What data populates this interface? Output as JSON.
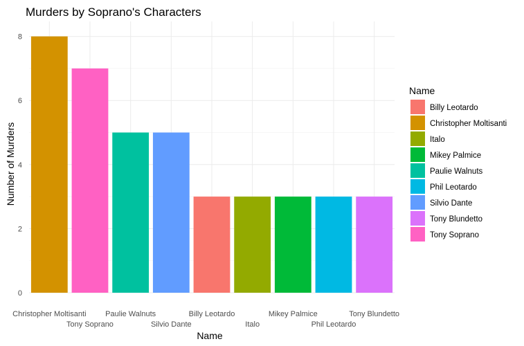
{
  "chart_data": {
    "type": "bar",
    "title": "Murders by Soprano's Characters",
    "xlabel": "Name",
    "ylabel": "Number of Murders",
    "ylim": [
      0,
      8.5
    ],
    "yticks": [
      0,
      2,
      4,
      6,
      8
    ],
    "grid": true,
    "legend_position": "right",
    "legend_title": "Name",
    "categories": [
      "Christopher Moltisanti",
      "Tony Soprano",
      "Paulie Walnuts",
      "Silvio Dante",
      "Billy Leotardo",
      "Italo",
      "Mikey Palmice",
      "Phil Leotardo",
      "Tony Blundetto"
    ],
    "values": [
      8,
      7,
      5,
      5,
      3,
      3,
      3,
      3,
      3
    ],
    "colors": [
      "#D39200",
      "#FF61C3",
      "#00C19F",
      "#619CFF",
      "#F8766D",
      "#93AA00",
      "#00BA38",
      "#00B9E3",
      "#DB72FB"
    ],
    "legend": [
      {
        "label": "Billy Leotardo",
        "color": "#F8766D"
      },
      {
        "label": "Christopher Moltisanti",
        "color": "#D39200"
      },
      {
        "label": "Italo",
        "color": "#93AA00"
      },
      {
        "label": "Mikey Palmice",
        "color": "#00BA38"
      },
      {
        "label": "Paulie Walnuts",
        "color": "#00C19F"
      },
      {
        "label": "Phil Leotardo",
        "color": "#00B9E3"
      },
      {
        "label": "Silvio Dante",
        "color": "#619CFF"
      },
      {
        "label": "Tony Blundetto",
        "color": "#DB72FB"
      },
      {
        "label": "Tony Soprano",
        "color": "#FF61C3"
      }
    ]
  }
}
